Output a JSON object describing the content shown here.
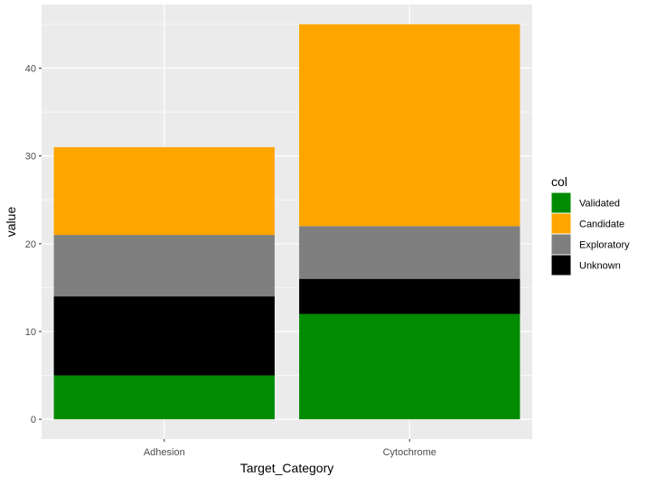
{
  "chart_data": {
    "type": "bar",
    "stacked": true,
    "categories": [
      "Adhesion",
      "Cytochrome"
    ],
    "series": [
      {
        "name": "Validated",
        "values": [
          5,
          12
        ]
      },
      {
        "name": "Unknown",
        "values": [
          9,
          4
        ]
      },
      {
        "name": "Exploratory",
        "values": [
          7,
          6
        ]
      },
      {
        "name": "Candidate",
        "values": [
          10,
          23
        ]
      }
    ],
    "totals": [
      31,
      45
    ],
    "xlabel": "Target_Category",
    "ylabel": "value",
    "ylim": [
      -2.25,
      47.25
    ],
    "yticks": [
      0,
      10,
      20,
      30,
      40
    ],
    "grid": true,
    "legend": {
      "title": "col",
      "position": "right",
      "entries": [
        "Validated",
        "Candidate",
        "Exploratory",
        "Unknown"
      ]
    },
    "colors": {
      "Validated": "#008B00",
      "Candidate": "#FFA500",
      "Exploratory": "#7F7F7F",
      "Unknown": "#000000"
    },
    "panel_background": "#EBEBEB",
    "gridline_color": "#FFFFFF"
  }
}
